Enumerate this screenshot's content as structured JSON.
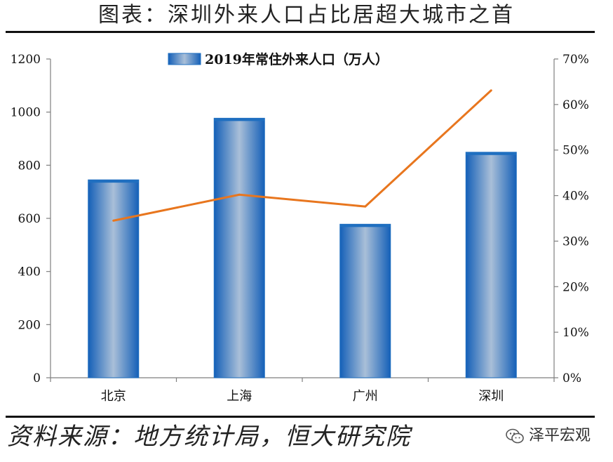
{
  "header": {
    "title": "图表：深圳外来人口占比居超大城市之首"
  },
  "footer": {
    "source": "资料来源：地方统计局，恒大研究院",
    "watermark": "泽平宏观"
  },
  "colors": {
    "bar": "#1f6fc0",
    "bar_light": "#9fb8d4",
    "line": "#e8761e",
    "axis": "#7f7f7f"
  },
  "chart_data": {
    "type": "bar",
    "categories": [
      "北京",
      "上海",
      "广州",
      "深圳"
    ],
    "series": [
      {
        "name": "2019年常住外来人口（万人）",
        "type": "bar",
        "axis": "left",
        "values": [
          745,
          977,
          578,
          849
        ]
      },
      {
        "type": "line",
        "axis": "right",
        "values": [
          34.5,
          40.2,
          37.6,
          63.1
        ]
      }
    ],
    "y_left": {
      "min": 0,
      "max": 1200,
      "ticks": [
        "0",
        "200",
        "400",
        "600",
        "800",
        "1000",
        "1200"
      ]
    },
    "y_right": {
      "min": 0,
      "max": 70,
      "ticks": [
        "0%",
        "10%",
        "20%",
        "30%",
        "40%",
        "50%",
        "60%",
        "70%"
      ]
    },
    "legend_position": "top-center",
    "grid": false
  }
}
